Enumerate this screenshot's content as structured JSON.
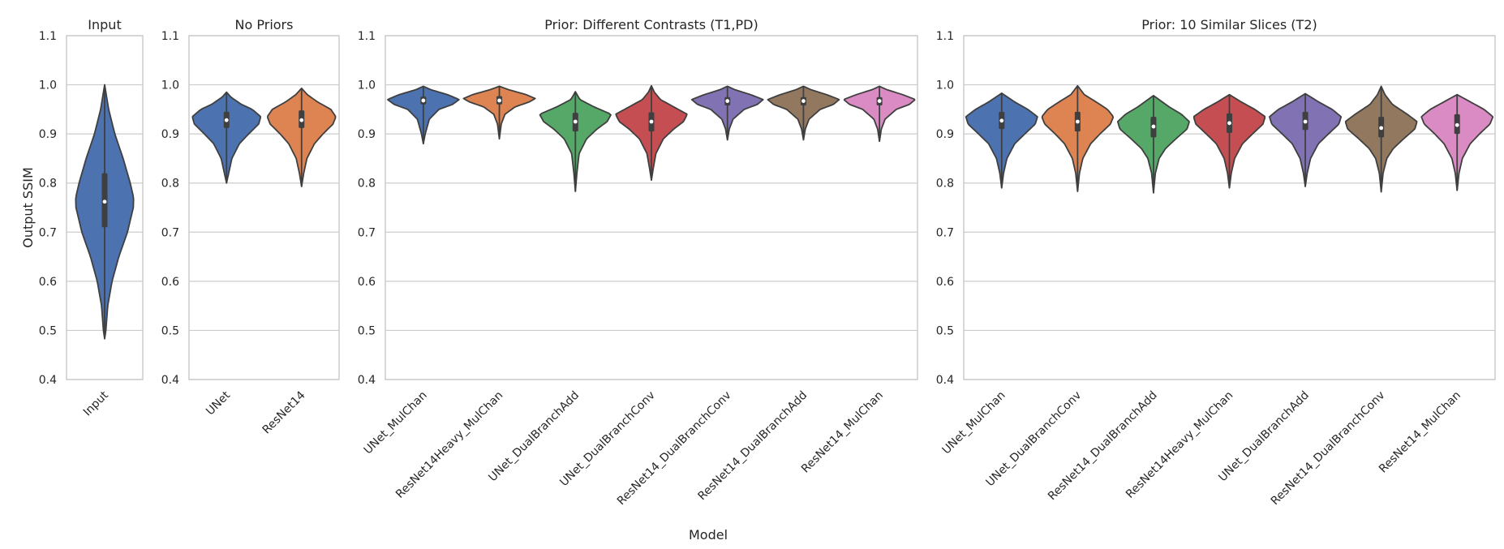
{
  "figure": {
    "ylabel": "Output SSIM",
    "xlabel": "Model"
  },
  "chart_data": [
    {
      "type": "violin",
      "title": "Input",
      "ylim": [
        0.4,
        1.1
      ],
      "yticks": [
        "0.4",
        "0.5",
        "0.6",
        "0.7",
        "0.8",
        "0.9",
        "1.0",
        "1.1"
      ],
      "grid": true,
      "categories": [
        "Input"
      ],
      "colors": [
        "#4c72b0"
      ],
      "distributions": [
        {
          "min": 0.483,
          "max": 1.0,
          "q1": 0.71,
          "median": 0.762,
          "q3": 0.82,
          "density": [
            [
              0.483,
              0.0
            ],
            [
              0.5,
              0.04
            ],
            [
              0.55,
              0.1
            ],
            [
              0.6,
              0.24
            ],
            [
              0.65,
              0.46
            ],
            [
              0.7,
              0.74
            ],
            [
              0.75,
              0.93
            ],
            [
              0.77,
              0.94
            ],
            [
              0.8,
              0.83
            ],
            [
              0.85,
              0.6
            ],
            [
              0.9,
              0.33
            ],
            [
              0.95,
              0.13
            ],
            [
              1.0,
              0.0
            ]
          ]
        }
      ]
    },
    {
      "type": "violin",
      "title": "No Priors",
      "ylim": [
        0.4,
        1.1
      ],
      "yticks": [
        "0.4",
        "0.5",
        "0.6",
        "0.7",
        "0.8",
        "0.9",
        "1.0",
        "1.1"
      ],
      "grid": true,
      "categories": [
        "UNet",
        "ResNet14"
      ],
      "colors": [
        "#4c72b0",
        "#dd8452"
      ],
      "distributions": [
        {
          "min": 0.8,
          "max": 0.985,
          "q1": 0.912,
          "median": 0.928,
          "q3": 0.945,
          "density": [
            [
              0.8,
              0.0
            ],
            [
              0.82,
              0.06
            ],
            [
              0.85,
              0.15
            ],
            [
              0.88,
              0.36
            ],
            [
              0.9,
              0.62
            ],
            [
              0.92,
              0.9
            ],
            [
              0.935,
              0.96
            ],
            [
              0.95,
              0.72
            ],
            [
              0.96,
              0.42
            ],
            [
              0.975,
              0.12
            ],
            [
              0.985,
              0.0
            ]
          ]
        },
        {
          "min": 0.793,
          "max": 0.993,
          "q1": 0.912,
          "median": 0.928,
          "q3": 0.948,
          "density": [
            [
              0.793,
              0.0
            ],
            [
              0.82,
              0.06
            ],
            [
              0.85,
              0.15
            ],
            [
              0.88,
              0.36
            ],
            [
              0.9,
              0.6
            ],
            [
              0.92,
              0.88
            ],
            [
              0.935,
              0.96
            ],
            [
              0.95,
              0.82
            ],
            [
              0.965,
              0.45
            ],
            [
              0.98,
              0.16
            ],
            [
              0.993,
              0.0
            ]
          ]
        }
      ]
    },
    {
      "type": "violin",
      "title": "Prior: Different Contrasts (T1,PD)",
      "ylim": [
        0.4,
        1.1
      ],
      "yticks": [
        "0.4",
        "0.5",
        "0.6",
        "0.7",
        "0.8",
        "0.9",
        "1.0",
        "1.1"
      ],
      "grid": true,
      "categories": [
        "UNet_MulChan",
        "ResNet14Heavy_MulChan",
        "UNet_DualBranchAdd",
        "UNet_DualBranchConv",
        "ResNet14_DualBranchConv",
        "ResNet14_DualBranchAdd",
        "ResNet14_MulChan"
      ],
      "colors": [
        "#4c72b0",
        "#dd8452",
        "#55a868",
        "#c44e52",
        "#8172b3",
        "#937860",
        "#da8bc3"
      ],
      "distributions": [
        {
          "min": 0.88,
          "max": 0.997,
          "q1": 0.96,
          "median": 0.968,
          "q3": 0.976,
          "density": [
            [
              0.88,
              0.0
            ],
            [
              0.9,
              0.05
            ],
            [
              0.93,
              0.16
            ],
            [
              0.95,
              0.42
            ],
            [
              0.96,
              0.78
            ],
            [
              0.97,
              0.96
            ],
            [
              0.98,
              0.65
            ],
            [
              0.99,
              0.2
            ],
            [
              0.997,
              0.0
            ]
          ]
        },
        {
          "min": 0.89,
          "max": 0.997,
          "q1": 0.96,
          "median": 0.968,
          "q3": 0.977,
          "density": [
            [
              0.89,
              0.0
            ],
            [
              0.92,
              0.05
            ],
            [
              0.94,
              0.15
            ],
            [
              0.955,
              0.42
            ],
            [
              0.965,
              0.8
            ],
            [
              0.972,
              0.96
            ],
            [
              0.98,
              0.72
            ],
            [
              0.99,
              0.25
            ],
            [
              0.997,
              0.0
            ]
          ]
        },
        {
          "min": 0.783,
          "max": 0.986,
          "q1": 0.905,
          "median": 0.925,
          "q3": 0.943,
          "density": [
            [
              0.783,
              0.0
            ],
            [
              0.82,
              0.04
            ],
            [
              0.86,
              0.1
            ],
            [
              0.89,
              0.3
            ],
            [
              0.91,
              0.58
            ],
            [
              0.925,
              0.85
            ],
            [
              0.94,
              0.96
            ],
            [
              0.955,
              0.5
            ],
            [
              0.97,
              0.12
            ],
            [
              0.986,
              0.0
            ]
          ]
        },
        {
          "min": 0.806,
          "max": 0.998,
          "q1": 0.905,
          "median": 0.925,
          "q3": 0.944,
          "density": [
            [
              0.806,
              0.0
            ],
            [
              0.83,
              0.05
            ],
            [
              0.86,
              0.12
            ],
            [
              0.89,
              0.32
            ],
            [
              0.91,
              0.6
            ],
            [
              0.925,
              0.86
            ],
            [
              0.94,
              0.96
            ],
            [
              0.955,
              0.6
            ],
            [
              0.97,
              0.24
            ],
            [
              0.985,
              0.08
            ],
            [
              0.998,
              0.0
            ]
          ]
        },
        {
          "min": 0.888,
          "max": 0.997,
          "q1": 0.958,
          "median": 0.967,
          "q3": 0.975,
          "density": [
            [
              0.888,
              0.0
            ],
            [
              0.91,
              0.05
            ],
            [
              0.93,
              0.15
            ],
            [
              0.95,
              0.45
            ],
            [
              0.96,
              0.8
            ],
            [
              0.97,
              0.96
            ],
            [
              0.98,
              0.62
            ],
            [
              0.99,
              0.2
            ],
            [
              0.997,
              0.0
            ]
          ]
        },
        {
          "min": 0.888,
          "max": 0.997,
          "q1": 0.958,
          "median": 0.967,
          "q3": 0.975,
          "density": [
            [
              0.888,
              0.0
            ],
            [
              0.91,
              0.05
            ],
            [
              0.93,
              0.15
            ],
            [
              0.95,
              0.45
            ],
            [
              0.96,
              0.8
            ],
            [
              0.97,
              0.96
            ],
            [
              0.98,
              0.62
            ],
            [
              0.99,
              0.2
            ],
            [
              0.997,
              0.0
            ]
          ]
        },
        {
          "min": 0.885,
          "max": 0.997,
          "q1": 0.958,
          "median": 0.967,
          "q3": 0.975,
          "density": [
            [
              0.885,
              0.0
            ],
            [
              0.91,
              0.05
            ],
            [
              0.93,
              0.15
            ],
            [
              0.95,
              0.45
            ],
            [
              0.96,
              0.8
            ],
            [
              0.97,
              0.96
            ],
            [
              0.98,
              0.62
            ],
            [
              0.99,
              0.2
            ],
            [
              0.997,
              0.0
            ]
          ]
        }
      ]
    },
    {
      "type": "violin",
      "title": "Prior: 10 Similar Slices (T2)",
      "ylim": [
        0.4,
        1.1
      ],
      "yticks": [
        "0.4",
        "0.5",
        "0.6",
        "0.7",
        "0.8",
        "0.9",
        "1.0",
        "1.1"
      ],
      "grid": true,
      "categories": [
        "UNet_MulChan",
        "UNet_DualBranchConv",
        "ResNet14_DualBranchAdd",
        "ResNet14Heavy_MulChan",
        "UNet_DualBranchAdd",
        "ResNet14_DualBranchConv",
        "ResNet14_MulChan"
      ],
      "colors": [
        "#4c72b0",
        "#dd8452",
        "#55a868",
        "#c44e52",
        "#8172b3",
        "#937860",
        "#da8bc3"
      ],
      "distributions": [
        {
          "min": 0.79,
          "max": 0.983,
          "q1": 0.91,
          "median": 0.927,
          "q3": 0.945,
          "density": [
            [
              0.79,
              0.0
            ],
            [
              0.82,
              0.05
            ],
            [
              0.85,
              0.14
            ],
            [
              0.88,
              0.35
            ],
            [
              0.9,
              0.62
            ],
            [
              0.92,
              0.9
            ],
            [
              0.935,
              0.96
            ],
            [
              0.95,
              0.7
            ],
            [
              0.965,
              0.35
            ],
            [
              0.983,
              0.0
            ]
          ]
        },
        {
          "min": 0.783,
          "max": 0.998,
          "q1": 0.905,
          "median": 0.925,
          "q3": 0.945,
          "density": [
            [
              0.783,
              0.0
            ],
            [
              0.82,
              0.05
            ],
            [
              0.85,
              0.14
            ],
            [
              0.88,
              0.35
            ],
            [
              0.9,
              0.6
            ],
            [
              0.92,
              0.88
            ],
            [
              0.935,
              0.96
            ],
            [
              0.95,
              0.8
            ],
            [
              0.965,
              0.5
            ],
            [
              0.98,
              0.18
            ],
            [
              0.998,
              0.0
            ]
          ]
        },
        {
          "min": 0.78,
          "max": 0.978,
          "q1": 0.893,
          "median": 0.915,
          "q3": 0.935,
          "density": [
            [
              0.78,
              0.0
            ],
            [
              0.82,
              0.05
            ],
            [
              0.85,
              0.15
            ],
            [
              0.87,
              0.32
            ],
            [
              0.89,
              0.6
            ],
            [
              0.91,
              0.9
            ],
            [
              0.925,
              0.96
            ],
            [
              0.94,
              0.75
            ],
            [
              0.955,
              0.42
            ],
            [
              0.978,
              0.0
            ]
          ]
        },
        {
          "min": 0.79,
          "max": 0.98,
          "q1": 0.902,
          "median": 0.922,
          "q3": 0.942,
          "density": [
            [
              0.79,
              0.0
            ],
            [
              0.82,
              0.05
            ],
            [
              0.85,
              0.14
            ],
            [
              0.88,
              0.35
            ],
            [
              0.9,
              0.62
            ],
            [
              0.92,
              0.9
            ],
            [
              0.935,
              0.96
            ],
            [
              0.95,
              0.68
            ],
            [
              0.965,
              0.32
            ],
            [
              0.98,
              0.0
            ]
          ]
        },
        {
          "min": 0.793,
          "max": 0.982,
          "q1": 0.908,
          "median": 0.925,
          "q3": 0.945,
          "density": [
            [
              0.793,
              0.0
            ],
            [
              0.82,
              0.05
            ],
            [
              0.85,
              0.14
            ],
            [
              0.88,
              0.35
            ],
            [
              0.9,
              0.62
            ],
            [
              0.92,
              0.9
            ],
            [
              0.935,
              0.96
            ],
            [
              0.95,
              0.72
            ],
            [
              0.965,
              0.36
            ],
            [
              0.982,
              0.0
            ]
          ]
        },
        {
          "min": 0.782,
          "max": 0.997,
          "q1": 0.893,
          "median": 0.912,
          "q3": 0.935,
          "density": [
            [
              0.782,
              0.0
            ],
            [
              0.82,
              0.05
            ],
            [
              0.85,
              0.15
            ],
            [
              0.87,
              0.32
            ],
            [
              0.89,
              0.6
            ],
            [
              0.91,
              0.9
            ],
            [
              0.925,
              0.96
            ],
            [
              0.94,
              0.7
            ],
            [
              0.96,
              0.3
            ],
            [
              0.98,
              0.1
            ],
            [
              0.997,
              0.0
            ]
          ]
        },
        {
          "min": 0.785,
          "max": 0.98,
          "q1": 0.9,
          "median": 0.918,
          "q3": 0.94,
          "density": [
            [
              0.785,
              0.0
            ],
            [
              0.82,
              0.05
            ],
            [
              0.85,
              0.14
            ],
            [
              0.88,
              0.35
            ],
            [
              0.9,
              0.6
            ],
            [
              0.92,
              0.88
            ],
            [
              0.935,
              0.96
            ],
            [
              0.95,
              0.72
            ],
            [
              0.965,
              0.36
            ],
            [
              0.98,
              0.0
            ]
          ]
        }
      ]
    }
  ]
}
